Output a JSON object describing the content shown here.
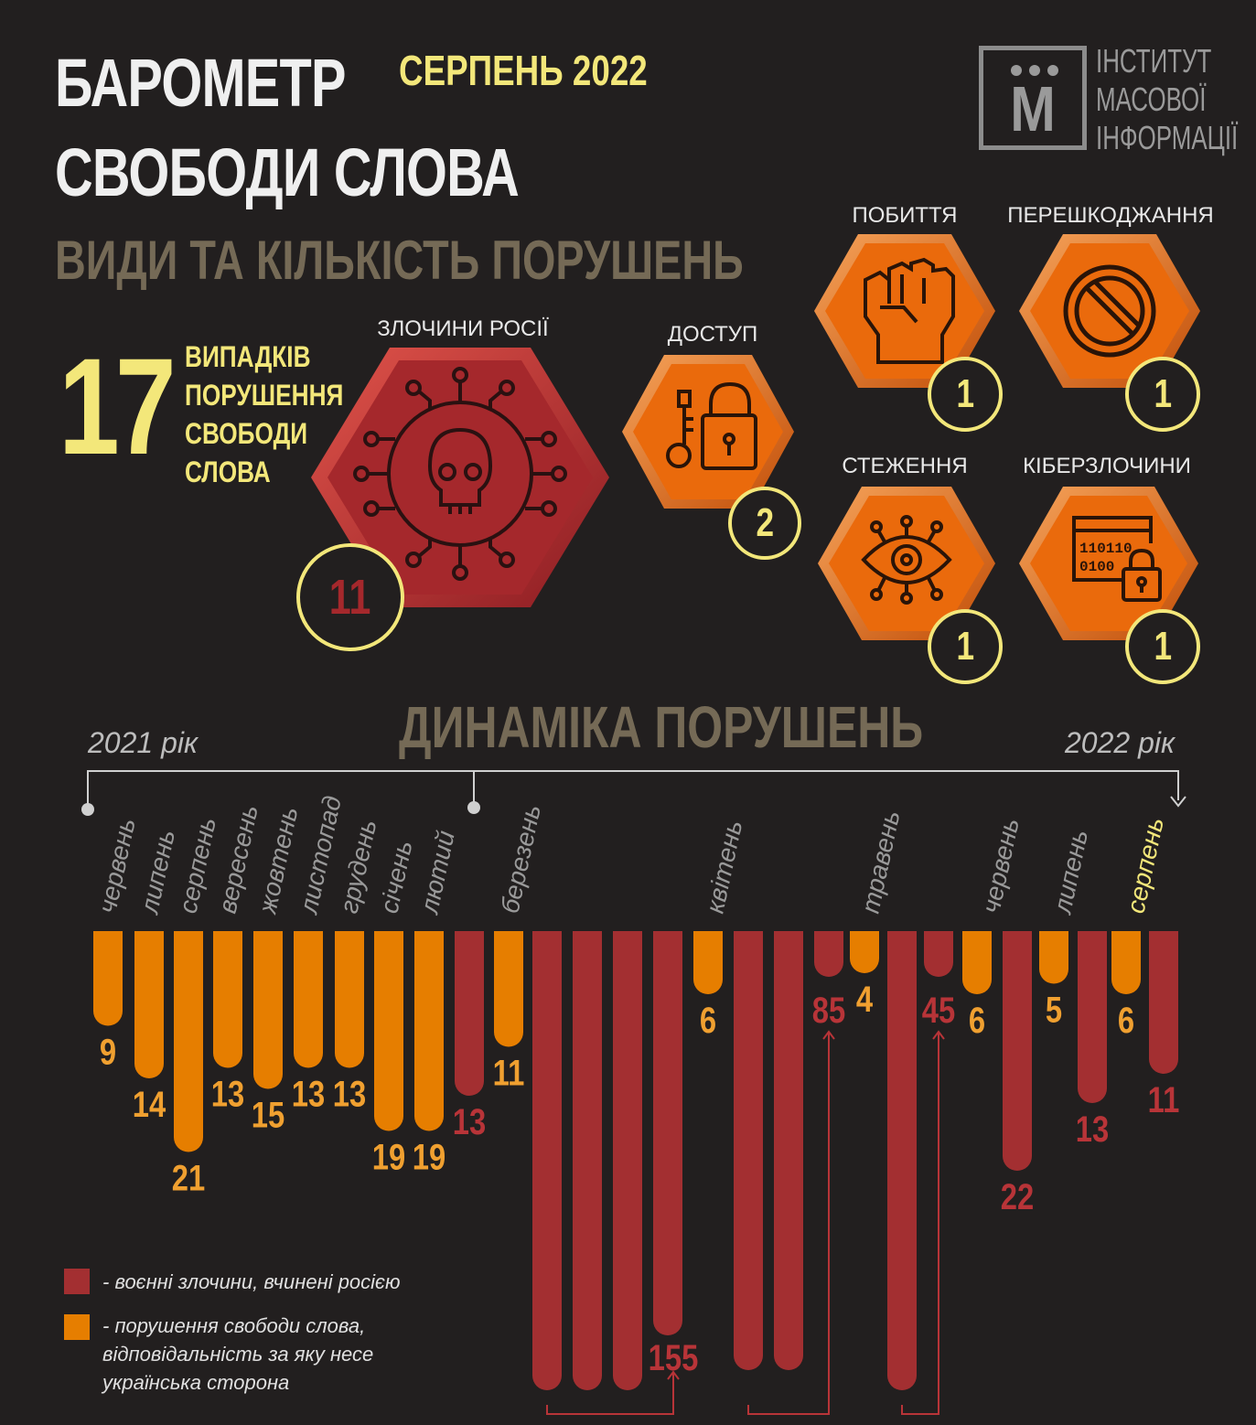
{
  "header": {
    "title_line1": "БАРОМЕТР",
    "title_line2": "СВОБОДИ СЛОВА",
    "date": "СЕРПЕНЬ 2022",
    "subtitle": "ВИДИ ТА КІЛЬКІСТЬ ПОРУШЕНЬ"
  },
  "logo": {
    "letter": "М",
    "line1": "ІНСТИТУТ",
    "line2": "МАСОВОЇ",
    "line3": "ІНФОРМАЦІЇ"
  },
  "summary": {
    "total": "17",
    "line1": "ВИПАДКІВ",
    "line2": "ПОРУШЕННЯ",
    "line3": "СВОБОДИ",
    "line4": "СЛОВА"
  },
  "categories": {
    "russia": {
      "label": "ЗЛОЧИНИ РОСІЇ",
      "count": "11",
      "icon": "skull-circuit-icon"
    },
    "access": {
      "label": "ДОСТУП",
      "count": "2",
      "icon": "key-lock-icon"
    },
    "beating": {
      "label": "ПОБИТТЯ",
      "count": "1",
      "icon": "fist-icon"
    },
    "obstruction": {
      "label": "ПЕРЕШКОДЖАННЯ",
      "count": "1",
      "icon": "prohibited-icon"
    },
    "surveillance": {
      "label": "СТЕЖЕННЯ",
      "count": "1",
      "icon": "eye-icon"
    },
    "cyber": {
      "label": "КІБЕРЗЛОЧИНИ",
      "count": "1",
      "icon": "binary-lock-icon"
    }
  },
  "colors": {
    "background": "#221f1f",
    "war_crimes": "#a32f31",
    "violations": "#e67e00",
    "accent_yellow": "#f3e77a",
    "heading_brown": "#756a56",
    "hex_orange": "#ea6a0c",
    "hex_red": "#a5282c"
  },
  "chart_data": {
    "type": "bar",
    "title": "ДИНАМІКА ПОРУШЕНЬ",
    "year_start": "2021 рік",
    "year_end": "2022 рік",
    "months": [
      {
        "label": "червень",
        "highlight": false
      },
      {
        "label": "липень",
        "highlight": false
      },
      {
        "label": "серпень",
        "highlight": false
      },
      {
        "label": "вересень",
        "highlight": false
      },
      {
        "label": "жовтень",
        "highlight": false
      },
      {
        "label": "листопад",
        "highlight": false
      },
      {
        "label": "грудень",
        "highlight": false
      },
      {
        "label": "січень",
        "highlight": false
      },
      {
        "label": "лютий",
        "highlight": false
      },
      {
        "label": "березень",
        "highlight": false
      },
      {
        "label": "квітень",
        "highlight": false
      },
      {
        "label": "травень",
        "highlight": false
      },
      {
        "label": "червень",
        "highlight": false
      },
      {
        "label": "липень",
        "highlight": false
      },
      {
        "label": "серпень",
        "highlight": true
      }
    ],
    "series": [
      {
        "name": "- воєнні злочини, вчинені росією",
        "color": "#a32f31"
      },
      {
        "name": "- порушення свободи слова, відповідальність за яку несе українська сторона",
        "color": "#e67e00"
      }
    ],
    "bars": [
      {
        "month": "червень 2021",
        "series": 1,
        "value": 9,
        "label": "9"
      },
      {
        "month": "липень 2021",
        "series": 1,
        "value": 14,
        "label": "14"
      },
      {
        "month": "серпень 2021",
        "series": 1,
        "value": 21,
        "label": "21"
      },
      {
        "month": "вересень 2021",
        "series": 1,
        "value": 13,
        "label": "13"
      },
      {
        "month": "жовтень 2021",
        "series": 1,
        "value": 15,
        "label": "15"
      },
      {
        "month": "листопад 2021",
        "series": 1,
        "value": 13,
        "label": "13"
      },
      {
        "month": "грудень 2021",
        "series": 1,
        "value": 13,
        "label": "13"
      },
      {
        "month": "січень 2022",
        "series": 1,
        "value": 19,
        "label": "19"
      },
      {
        "month": "лютий 2022",
        "series": 1,
        "value": 19,
        "label": "19"
      },
      {
        "month": "березень 2022",
        "series": 0,
        "value": 13,
        "label": "13"
      },
      {
        "month": "березень 2022",
        "series": 1,
        "value": 11,
        "label": "11"
      },
      {
        "month": "березень 2022",
        "series": 0,
        "value": 155,
        "label": "155",
        "group_total": true
      },
      {
        "month": "квітень 2022",
        "series": 1,
        "value": 6,
        "label": "6"
      },
      {
        "month": "квітень 2022",
        "series": 0,
        "value": 85,
        "label": "85",
        "group_total": true
      },
      {
        "month": "травень 2022",
        "series": 1,
        "value": 4,
        "label": "4"
      },
      {
        "month": "травень 2022",
        "series": 0,
        "value": 45,
        "label": "45",
        "group_total": true
      },
      {
        "month": "червень 2022",
        "series": 1,
        "value": 6,
        "label": "6"
      },
      {
        "month": "червень 2022",
        "series": 0,
        "value": 22,
        "label": "22"
      },
      {
        "month": "липень 2022",
        "series": 1,
        "value": 5,
        "label": "5"
      },
      {
        "month": "липень 2022",
        "series": 0,
        "value": 13,
        "label": "13"
      },
      {
        "month": "серпень 2022",
        "series": 1,
        "value": 6,
        "label": "6"
      },
      {
        "month": "серпень 2022",
        "series": 0,
        "value": 11,
        "label": "11"
      }
    ]
  }
}
